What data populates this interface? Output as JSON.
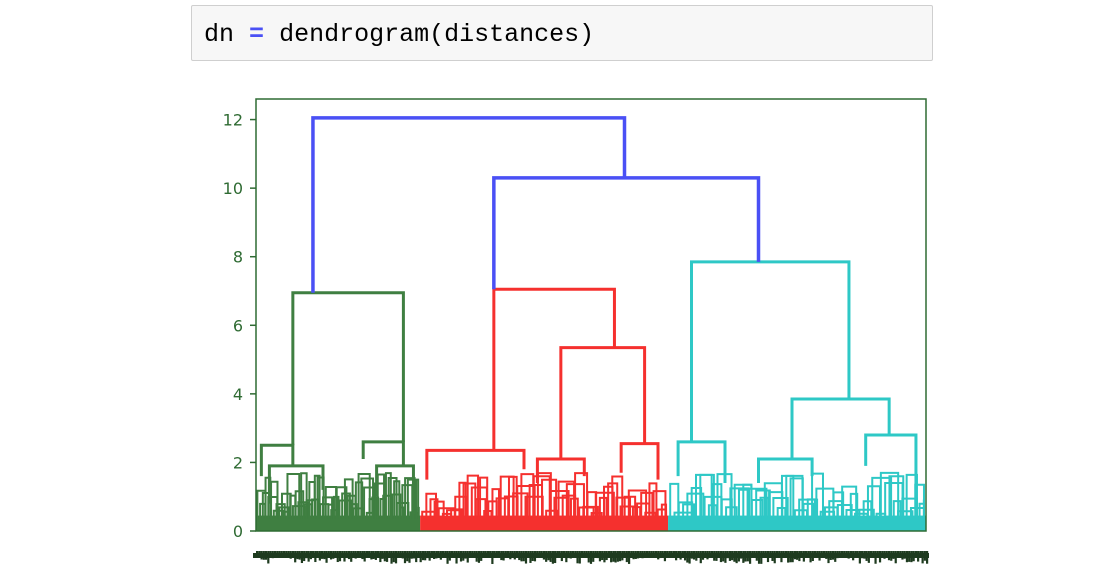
{
  "code_cell": {
    "var": "dn",
    "op": "=",
    "call": "dendrogram(distances)"
  },
  "chart_data": {
    "type": "dendrogram",
    "title": "",
    "xlabel": "",
    "ylabel": "",
    "ylim": [
      0,
      12.6
    ],
    "yticks": [
      0,
      2,
      4,
      6,
      8,
      10,
      12
    ],
    "grid": false,
    "colors": {
      "link_above_threshold": "#4a50f5",
      "cluster_1": "#3f7f41",
      "cluster_2": "#f5302e",
      "cluster_3": "#2ec8c6",
      "axis": "#2f6b33"
    },
    "clusters": [
      {
        "color_key": "cluster_1",
        "leaf_range": [
          0,
          0.245
        ],
        "links": [
          {
            "h": 6.95,
            "l": 0.055,
            "r": 0.22,
            "lh": 2.5,
            "rh": 2.6
          },
          {
            "h": 2.5,
            "l": 0.008,
            "r": 0.055,
            "lh": 1.6,
            "rh": 1.9
          },
          {
            "h": 2.6,
            "l": 0.16,
            "r": 0.22,
            "lh": 2.1,
            "rh": 1.9
          },
          {
            "h": 1.9,
            "l": 0.02,
            "r": 0.1,
            "lh": 0.8,
            "rh": 1.2
          },
          {
            "h": 1.9,
            "l": 0.18,
            "r": 0.235,
            "lh": 1.0,
            "rh": 1.3
          }
        ]
      },
      {
        "color_key": "cluster_2",
        "leaf_range": [
          0.245,
          0.615
        ],
        "links": [
          {
            "h": 7.05,
            "l": 0.355,
            "r": 0.535,
            "lh": 2.35,
            "rh": 5.35
          },
          {
            "h": 5.35,
            "l": 0.455,
            "r": 0.58,
            "lh": 2.1,
            "rh": 2.55
          },
          {
            "h": 2.35,
            "l": 0.255,
            "r": 0.4,
            "lh": 1.5,
            "rh": 1.8
          },
          {
            "h": 2.1,
            "l": 0.42,
            "r": 0.49,
            "lh": 1.4,
            "rh": 1.6
          },
          {
            "h": 2.55,
            "l": 0.545,
            "r": 0.6,
            "lh": 1.7,
            "rh": 1.5
          }
        ]
      },
      {
        "color_key": "cluster_3",
        "leaf_range": [
          0.615,
          1.0
        ],
        "links": [
          {
            "h": 7.85,
            "l": 0.65,
            "r": 0.885,
            "lh": 2.6,
            "rh": 3.85
          },
          {
            "h": 3.85,
            "l": 0.8,
            "r": 0.945,
            "lh": 2.1,
            "rh": 2.8
          },
          {
            "h": 2.6,
            "l": 0.63,
            "r": 0.7,
            "lh": 1.6,
            "rh": 1.4
          },
          {
            "h": 2.1,
            "l": 0.75,
            "r": 0.83,
            "lh": 1.4,
            "rh": 1.6
          },
          {
            "h": 2.8,
            "l": 0.91,
            "r": 0.985,
            "lh": 1.9,
            "rh": 1.2
          }
        ]
      }
    ],
    "top_links": [
      {
        "h": 10.3,
        "l": 0.355,
        "r": 0.75,
        "lh": 7.05,
        "rh": 7.85
      },
      {
        "h": 12.05,
        "l": 0.085,
        "r": 0.55,
        "lh": 6.95,
        "rh": 10.3
      }
    ]
  }
}
